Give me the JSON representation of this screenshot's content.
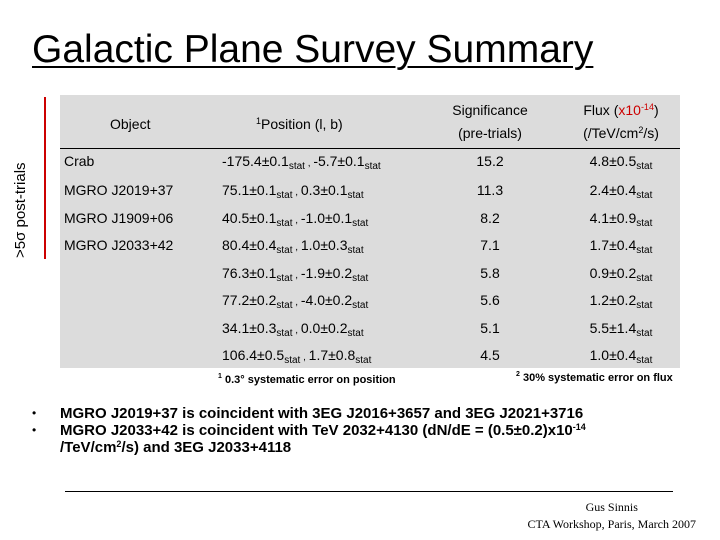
{
  "title": "Galactic Plane Survey Summary",
  "side_label": ">5σ post-trials",
  "headers": {
    "object": "Object",
    "position_sup": "1",
    "position": "Position (l, b)",
    "significance_line1": "Significance",
    "significance_line2": "(pre-trials)",
    "flux_line1_prefix": "Flux (",
    "flux_multiplier": "x10",
    "flux_exp": "-14",
    "flux_line1_suffix": ")",
    "flux_unit_prefix": "(/TeV/cm",
    "flux_unit_exp": "2",
    "flux_unit_suffix": "/s)"
  },
  "stat_label": "stat",
  "rows": [
    {
      "object": "Crab",
      "l": "-175.4±0.1",
      "b": "-5.7±0.1",
      "significance": "15.2",
      "flux": "4.8±0.5"
    },
    {
      "object": "MGRO J2019+37",
      "l": "75.1±0.1",
      "b": "0.3±0.1",
      "significance": "11.3",
      "flux": "2.4±0.4"
    },
    {
      "object": "MGRO J1909+06",
      "l": "40.5±0.1",
      "b": "-1.0±0.1",
      "significance": "8.2",
      "flux": "4.1±0.9"
    },
    {
      "object": "MGRO J2033+42",
      "l": "80.4±0.4",
      "b": "1.0±0.3",
      "significance": "7.1",
      "flux": "1.7±0.4"
    },
    {
      "object": "",
      "l": "76.3±0.1",
      "b": "-1.9±0.2",
      "significance": "5.8",
      "flux": "0.9±0.2"
    },
    {
      "object": "",
      "l": "77.2±0.2",
      "b": "-4.0±0.2",
      "significance": "5.6",
      "flux": "1.2±0.2"
    },
    {
      "object": "",
      "l": "34.1±0.3",
      "b": "0.0±0.2",
      "significance": "5.1",
      "flux": "5.5±1.4"
    },
    {
      "object": "",
      "l": "106.4±0.5",
      "b": "1.7±0.8",
      "significance": "4.5",
      "flux": "1.0±0.4"
    }
  ],
  "footnotes": {
    "position_sup": "1",
    "position": "0.3° systematic error on position",
    "flux_sup": "2",
    "flux": "30% systematic error on flux"
  },
  "bullets": [
    {
      "text": "MGRO J2019+37 is coincident with 3EG J2016+3657 and 3EG J2021+3716"
    },
    {
      "text_prefix": "MGRO J2033+42 is coincident with TeV 2032+4130 (d",
      "text_main": "N/dE = (0.5±0.2)x10",
      "exp": "-14",
      "line2_prefix": "/TeV/cm",
      "line2_exp": "2",
      "line2_suffix": "/s) and 3EG J2033+4118"
    }
  ],
  "credit": {
    "line1": "Gus Sinnis",
    "line2": "CTA Workshop, Paris, March 2007"
  },
  "colors": {
    "accent_red": "#cc0000",
    "panel_gray": "#dcdcdc"
  }
}
